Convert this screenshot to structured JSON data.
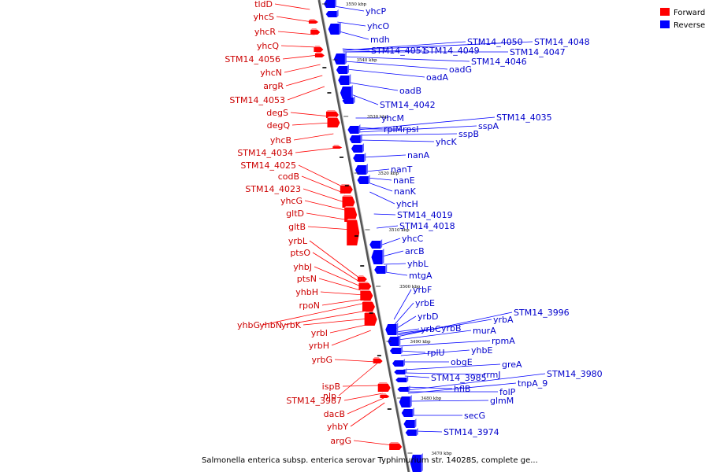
{
  "caption": "Salmonella enterica subsp. enterica serovar Typhimurium str. 14028S, complete ge...",
  "legend": {
    "forward": {
      "label": "Forward",
      "color": "#ff0000"
    },
    "reverse": {
      "label": "Reverse",
      "color": "#0000ff"
    }
  },
  "ticks": [
    "3550 kbp",
    "3540 kbp",
    "3530 kbp",
    "3520 kbp",
    "3510 kbp",
    "3500 kbp",
    "3490 kbp",
    "3480 kbp",
    "3470 kbp"
  ],
  "forward_genes": [
    "tldD",
    "yhcS",
    "yhcR",
    "yhcQ",
    "STM14_4056",
    "yhcN",
    "argR",
    "STM14_4053",
    "degS",
    "degQ",
    "yhcB",
    "STM14_4034",
    "STM14_4025",
    "codB",
    "STM14_4023",
    "yhcG",
    "gltD",
    "gltB",
    "yrbL",
    "ptsO",
    "yhbJ",
    "ptsN",
    "yhbH",
    "rpoN",
    "yhbG",
    "yhbN",
    "yrbK",
    "yrbI",
    "yrbH",
    "yrbG",
    "nlp",
    "ispB",
    "STM14_3987",
    "dacB",
    "yhbY",
    "argG"
  ],
  "reverse_genes": [
    "yhcP",
    "yhcO",
    "mdh",
    "STM14_4051",
    "STM14_4049",
    "STM14_4050",
    "STM14_4048",
    "STM14_4047",
    "STM14_4046",
    "oadG",
    "oadA",
    "oadB",
    "STM14_4042",
    "yhcM",
    "rplM",
    "rpsI",
    "STM14_4035",
    "sspA",
    "sspB",
    "yhcK",
    "nanA",
    "nanT",
    "nanE",
    "nanK",
    "yhcH",
    "STM14_4019",
    "STM14_4018",
    "yhcC",
    "arcB",
    "yhbL",
    "mtgA",
    "yrbF",
    "yrbE",
    "yrbD",
    "yrbC",
    "yrbB",
    "yrbA",
    "STM14_3996",
    "murA",
    "rpmA",
    "rplU",
    "yhbE",
    "obgE",
    "greA",
    "rrmJ",
    "STM14_3985",
    "hflB",
    "folP",
    "STM14_3980",
    "tnpA_9",
    "glmM",
    "secG",
    "STM14_3974"
  ]
}
